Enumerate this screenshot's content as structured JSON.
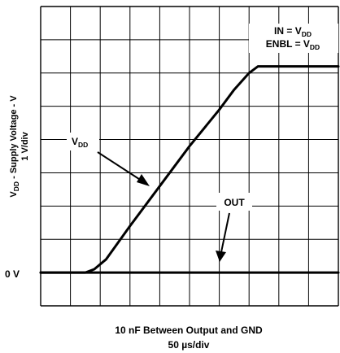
{
  "chart_data": {
    "type": "line",
    "title": "",
    "xlabel": "10 nF Between Output and GND",
    "x_scale_label": "50 µs/div",
    "ylabel": {
      "main": "V",
      "main_sub": "DD",
      "main_rest": " - Supply Voltage - V",
      "scale": "1 V/div"
    },
    "y_zero_label": "0 V",
    "grid": true,
    "x_divisions": 10,
    "y_divisions": 9,
    "xlim_div": [
      0,
      10
    ],
    "ylim_div": [
      -1,
      8
    ],
    "legend": {
      "placement": "top-right",
      "line1": {
        "a": "IN = V",
        "sub": "DD"
      },
      "line2": {
        "a": "ENBL = V",
        "sub": "DD"
      }
    },
    "annotations": [
      {
        "text": "V",
        "sub": "DD",
        "target_series": "VDD"
      },
      {
        "text": "OUT",
        "sub": "",
        "target_series": "OUT"
      }
    ],
    "series": [
      {
        "name": "VDD",
        "x_div": [
          0,
          1.5,
          1.8,
          2.2,
          3.0,
          4.0,
          5.0,
          6.0,
          6.5,
          7.0,
          7.3,
          7.6,
          10
        ],
        "y_V": [
          0,
          0,
          0.1,
          0.4,
          1.4,
          2.6,
          3.8,
          4.9,
          5.5,
          6.0,
          6.2,
          6.2,
          6.2
        ]
      },
      {
        "name": "OUT",
        "x_div": [
          0,
          10
        ],
        "y_V": [
          0,
          0
        ]
      }
    ]
  }
}
